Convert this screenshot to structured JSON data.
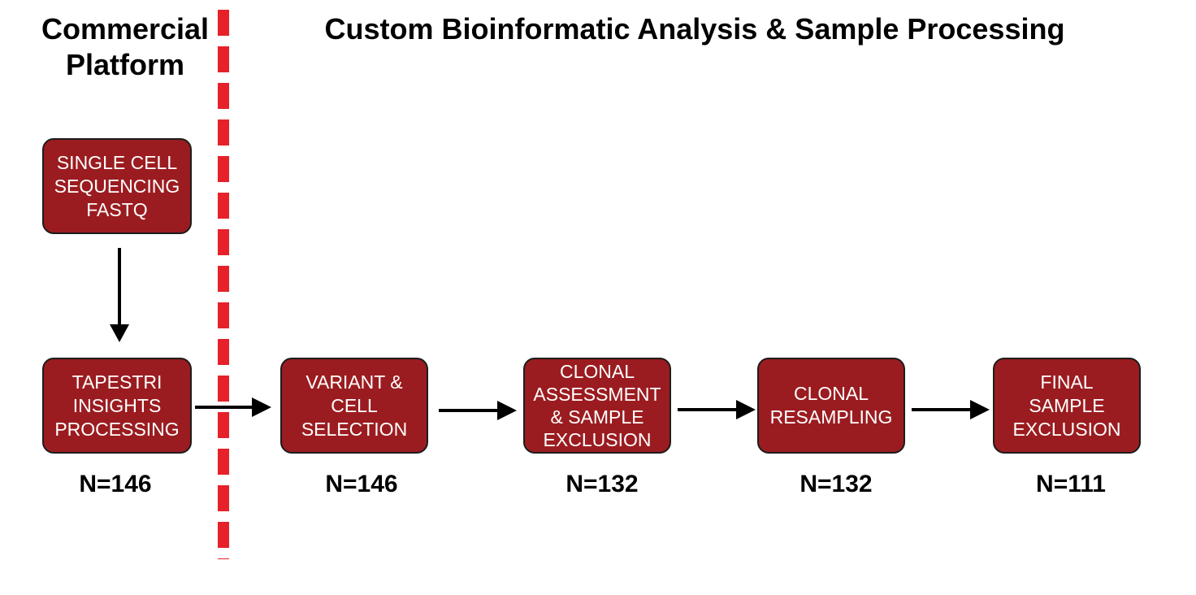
{
  "headings": {
    "commercial": "Commercial Platform",
    "custom": "Custom Bioinformatic Analysis & Sample Processing"
  },
  "input_box": {
    "label": "SINGLE CELL\nSEQUENCING\nFASTQ"
  },
  "steps": [
    {
      "label": "TAPESTRI\nINSIGHTS\nPROCESSING",
      "count": "N=146"
    },
    {
      "label": "VARIANT &\nCELL\nSELECTION",
      "count": "N=146"
    },
    {
      "label": "CLONAL\nASSESSMENT\n& SAMPLE\nEXCLUSION",
      "count": "N=132"
    },
    {
      "label": "CLONAL\nRESAMPLING",
      "count": "N=132"
    },
    {
      "label": "FINAL\nSAMPLE\nEXCLUSION",
      "count": "N=111"
    }
  ],
  "colors": {
    "box_fill": "#9b1c20",
    "box_border": "#1c1c1c",
    "divider": "#e62129",
    "arrow": "#000000"
  }
}
